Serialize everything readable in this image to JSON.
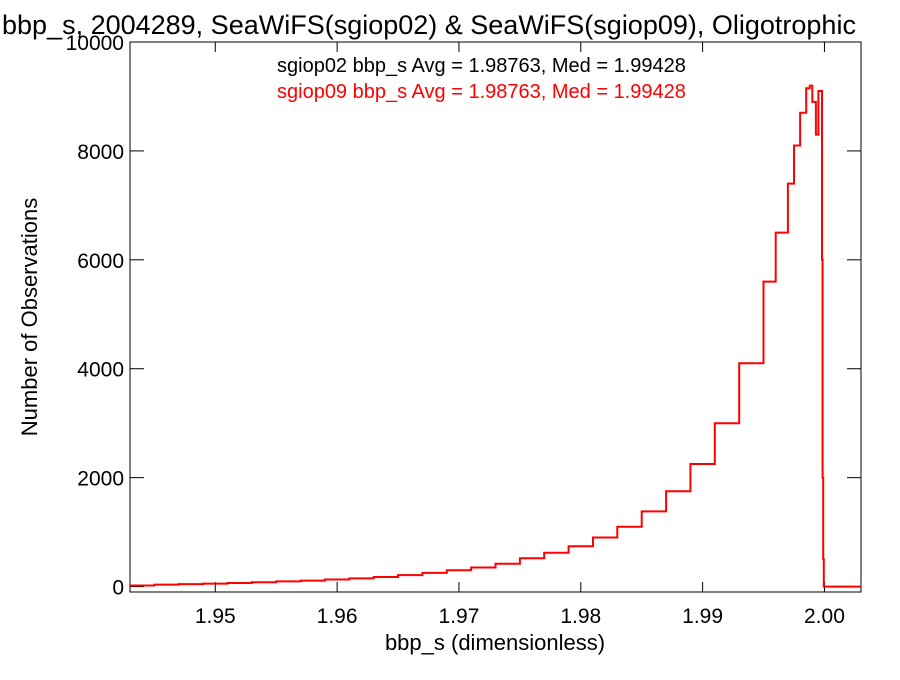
{
  "chart_data": {
    "type": "histogram",
    "title": "bbp_s, 2004289, SeaWiFS(sgiop02) & SeaWiFS(sgiop09), Oligotrophic",
    "xlabel": "bbp_s (dimensionless)",
    "ylabel": "Number of Observations",
    "xlim": [
      1.943,
      2.003
    ],
    "ylim": [
      -100,
      10000
    ],
    "x_ticks": [
      1.95,
      1.96,
      1.97,
      1.98,
      1.99,
      2.0
    ],
    "x_tick_labels": [
      "1.95",
      "1.96",
      "1.97",
      "1.98",
      "1.99",
      "2.00"
    ],
    "y_ticks": [
      0,
      2000,
      4000,
      6000,
      8000,
      10000
    ],
    "y_tick_labels": [
      "0",
      "2000",
      "4000",
      "6000",
      "8000",
      "10000"
    ],
    "grid": false,
    "legend": [
      {
        "text": "sgiop02 bbp_s Avg = 1.98763, Med = 1.99428",
        "color": "#000000"
      },
      {
        "text": "sgiop09 bbp_s Avg = 1.98763, Med = 1.99428",
        "color": "#ff0000"
      }
    ],
    "series_color": "#ff0000",
    "series": [
      {
        "x": [
          1.943,
          1.945,
          1.947,
          1.949,
          1.951,
          1.953,
          1.955,
          1.957,
          1.959,
          1.961,
          1.963,
          1.965,
          1.967,
          1.969,
          1.971,
          1.973,
          1.975,
          1.977,
          1.979,
          1.981,
          1.983,
          1.985,
          1.987,
          1.989,
          1.991,
          1.993,
          1.995,
          1.996,
          1.997,
          1.9975,
          1.998,
          1.9985,
          1.9988,
          1.999,
          1.9993,
          1.9995,
          1.9998,
          1.99985,
          1.9999,
          1.99995,
          2.0,
          2.003
        ],
        "values": [
          20,
          35,
          45,
          55,
          65,
          80,
          95,
          110,
          130,
          150,
          175,
          210,
          250,
          300,
          350,
          420,
          520,
          620,
          740,
          900,
          1100,
          1380,
          1750,
          2250,
          3000,
          4100,
          5600,
          6500,
          7400,
          8100,
          8700,
          9150,
          9200,
          8900,
          8300,
          9100,
          6000,
          2000,
          500,
          0,
          0,
          0
        ]
      }
    ]
  }
}
